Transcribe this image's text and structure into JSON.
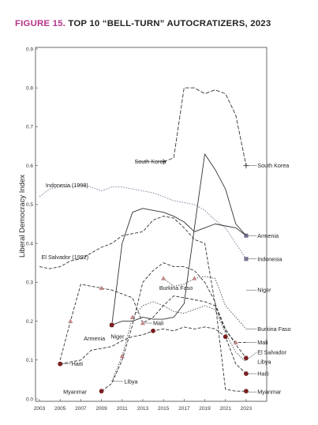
{
  "figure_number": "FIGURE 15.",
  "figure_title": "TOP 10 “BELL-TURN” AUTOCRATIZERS, 2023",
  "chart_data": {
    "type": "line",
    "title": "FIGURE 15. TOP 10 “BELL-TURN” AUTOCRATIZERS, 2023",
    "xlabel": "",
    "ylabel": "Liberal Democracy Index",
    "xlim": [
      2003,
      2024
    ],
    "ylim": [
      0,
      0.9
    ],
    "x_ticks": [
      "2003",
      "2005",
      "2007",
      "2009",
      "2011",
      "2013",
      "2015",
      "2017",
      "2019",
      "2021",
      "2023"
    ],
    "y_ticks": [
      "0.0",
      "0.1",
      "0.2",
      "0.3",
      "0.4",
      "0.5",
      "0.6",
      "0.7",
      "0.8",
      "0.9"
    ],
    "grid": false,
    "legend": "none",
    "series": [
      {
        "name": "South Korea",
        "color": "#333333",
        "dash": "5,2",
        "marker": "plus",
        "label": "South Korea",
        "start_label": "South Korea",
        "marker_at": [
          2015,
          2023
        ],
        "points": [
          [
            2015,
            0.61
          ],
          [
            2016,
            0.62
          ],
          [
            2017,
            0.8
          ],
          [
            2018,
            0.8
          ],
          [
            2019,
            0.785
          ],
          [
            2020,
            0.795
          ],
          [
            2021,
            0.785
          ],
          [
            2022,
            0.73
          ],
          [
            2023,
            0.6
          ]
        ]
      },
      {
        "name": "Indonesia",
        "color": "#7a7a9a",
        "dash": "1.6,1.6",
        "marker": "square",
        "label": "Indonesia",
        "start_label": "Indonesia (1998)",
        "marker_at": [
          2023
        ],
        "points": [
          [
            2003,
            0.52
          ],
          [
            2004,
            0.54
          ],
          [
            2005,
            0.545
          ],
          [
            2006,
            0.545
          ],
          [
            2007,
            0.55
          ],
          [
            2008,
            0.545
          ],
          [
            2009,
            0.535
          ],
          [
            2010,
            0.545
          ],
          [
            2011,
            0.545
          ],
          [
            2012,
            0.54
          ],
          [
            2013,
            0.535
          ],
          [
            2014,
            0.53
          ],
          [
            2015,
            0.52
          ],
          [
            2016,
            0.51
          ],
          [
            2017,
            0.505
          ],
          [
            2018,
            0.5
          ],
          [
            2019,
            0.485
          ],
          [
            2020,
            0.46
          ],
          [
            2021,
            0.44
          ],
          [
            2022,
            0.4
          ],
          [
            2023,
            0.36
          ]
        ]
      },
      {
        "name": "Armenia",
        "color": "#333333",
        "dash": "",
        "marker": "square",
        "label": "Armenia",
        "start_label": "Armenia",
        "marker_at": [
          2010,
          2023
        ],
        "points": [
          [
            2010,
            0.19
          ],
          [
            2011,
            0.4
          ],
          [
            2012,
            0.48
          ],
          [
            2013,
            0.49
          ],
          [
            2014,
            0.485
          ],
          [
            2015,
            0.48
          ],
          [
            2016,
            0.47
          ],
          [
            2017,
            0.455
          ],
          [
            2018,
            0.43
          ],
          [
            2019,
            0.44
          ],
          [
            2020,
            0.45
          ],
          [
            2021,
            0.445
          ],
          [
            2022,
            0.44
          ],
          [
            2023,
            0.42
          ]
        ]
      },
      {
        "name": "El Salvador",
        "color": "#333333",
        "dash": "4,2",
        "marker": "circle",
        "label": "El Salvador",
        "start_label": "El Salvador (1992)",
        "marker_at": [
          2023
        ],
        "points": [
          [
            2003,
            0.34
          ],
          [
            2004,
            0.335
          ],
          [
            2005,
            0.34
          ],
          [
            2006,
            0.355
          ],
          [
            2007,
            0.36
          ],
          [
            2008,
            0.375
          ],
          [
            2009,
            0.39
          ],
          [
            2010,
            0.4
          ],
          [
            2011,
            0.42
          ],
          [
            2012,
            0.425
          ],
          [
            2013,
            0.43
          ],
          [
            2014,
            0.46
          ],
          [
            2015,
            0.47
          ],
          [
            2016,
            0.465
          ],
          [
            2017,
            0.44
          ],
          [
            2018,
            0.41
          ],
          [
            2019,
            0.4
          ],
          [
            2020,
            0.245
          ],
          [
            2021,
            0.18
          ],
          [
            2022,
            0.14
          ],
          [
            2023,
            0.105
          ]
        ]
      },
      {
        "name": "Niger",
        "color": "#333333",
        "dash": "",
        "marker": "circle",
        "label": "Niger",
        "start_label": "Niger",
        "marker_at": [
          2010
        ],
        "points": [
          [
            2010,
            0.19
          ],
          [
            2011,
            0.2
          ],
          [
            2012,
            0.2
          ],
          [
            2013,
            0.21
          ],
          [
            2014,
            0.205
          ],
          [
            2015,
            0.205
          ],
          [
            2016,
            0.21
          ],
          [
            2017,
            0.245
          ],
          [
            2018,
            0.44
          ],
          [
            2019,
            0.63
          ],
          [
            2020,
            0.59
          ],
          [
            2021,
            0.54
          ],
          [
            2022,
            0.45
          ],
          [
            2023,
            0.42
          ]
        ]
      },
      {
        "name": "Burkina Faso",
        "color": "#555555",
        "dash": "1.6,1.6",
        "marker": "triangle",
        "label": "Burkina Faso",
        "start_label": "Burkina Faso",
        "marker_at": [
          2015,
          2018
        ],
        "points": [
          [
            2015,
            0.31
          ],
          [
            2016,
            0.29
          ],
          [
            2017,
            0.295
          ],
          [
            2018,
            0.31
          ],
          [
            2019,
            0.315
          ],
          [
            2020,
            0.31
          ],
          [
            2021,
            0.24
          ],
          [
            2022,
            0.21
          ],
          [
            2023,
            0.18
          ]
        ]
      },
      {
        "name": "Mali",
        "color": "#333333",
        "dash": "4,2",
        "marker": "triangle",
        "label": "Mali",
        "start_label": "Mali",
        "marker_at": [
          2006,
          2009,
          2013,
          2022
        ],
        "points": [
          [
            2005,
            0.1
          ],
          [
            2006,
            0.2
          ],
          [
            2007,
            0.295
          ],
          [
            2008,
            0.29
          ],
          [
            2009,
            0.285
          ],
          [
            2010,
            0.28
          ],
          [
            2011,
            0.27
          ],
          [
            2012,
            0.26
          ],
          [
            2013,
            0.195
          ],
          [
            2014,
            0.21
          ],
          [
            2015,
            0.24
          ],
          [
            2016,
            0.265
          ],
          [
            2017,
            0.26
          ],
          [
            2018,
            0.255
          ],
          [
            2019,
            0.25
          ],
          [
            2020,
            0.24
          ],
          [
            2021,
            0.175
          ],
          [
            2022,
            0.145
          ],
          [
            2023,
            0.145
          ]
        ]
      },
      {
        "name": "Libya",
        "color": "#555555",
        "dash": "1.6,1.6",
        "marker": "triangle",
        "label": "Libya",
        "start_label": "Libya",
        "marker_at": [
          2011,
          2012
        ],
        "points": [
          [
            2010,
            0.045
          ],
          [
            2011,
            0.11
          ],
          [
            2012,
            0.21
          ],
          [
            2013,
            0.24
          ],
          [
            2014,
            0.25
          ],
          [
            2015,
            0.24
          ],
          [
            2016,
            0.225
          ],
          [
            2017,
            0.22
          ],
          [
            2018,
            0.23
          ],
          [
            2019,
            0.24
          ],
          [
            2020,
            0.23
          ],
          [
            2021,
            0.17
          ],
          [
            2022,
            0.12
          ],
          [
            2023,
            0.095
          ]
        ]
      },
      {
        "name": "Haiti",
        "color": "#333333",
        "dash": "4,2",
        "marker": "circle",
        "label": "Haiti",
        "start_label": "Haiti",
        "marker_at": [
          2005,
          2014,
          2021,
          2023
        ],
        "points": [
          [
            2005,
            0.09
          ],
          [
            2006,
            0.095
          ],
          [
            2007,
            0.1
          ],
          [
            2008,
            0.125
          ],
          [
            2009,
            0.13
          ],
          [
            2010,
            0.135
          ],
          [
            2011,
            0.15
          ],
          [
            2012,
            0.16
          ],
          [
            2013,
            0.165
          ],
          [
            2014,
            0.175
          ],
          [
            2015,
            0.18
          ],
          [
            2016,
            0.175
          ],
          [
            2017,
            0.185
          ],
          [
            2018,
            0.18
          ],
          [
            2019,
            0.185
          ],
          [
            2020,
            0.18
          ],
          [
            2021,
            0.16
          ],
          [
            2022,
            0.09
          ],
          [
            2023,
            0.065
          ]
        ]
      },
      {
        "name": "Myanmar",
        "color": "#333333",
        "dash": "4,2",
        "marker": "circle",
        "label": "Myanmar",
        "start_label": "Myanmar",
        "marker_at": [
          2009,
          2023
        ],
        "points": [
          [
            2009,
            0.02
          ],
          [
            2010,
            0.04
          ],
          [
            2011,
            0.1
          ],
          [
            2012,
            0.19
          ],
          [
            2013,
            0.3
          ],
          [
            2014,
            0.33
          ],
          [
            2015,
            0.35
          ],
          [
            2016,
            0.34
          ],
          [
            2017,
            0.34
          ],
          [
            2018,
            0.33
          ],
          [
            2019,
            0.3
          ],
          [
            2020,
            0.25
          ],
          [
            2021,
            0.025
          ],
          [
            2022,
            0.02
          ],
          [
            2023,
            0.02
          ]
        ]
      }
    ],
    "annotations": [
      "South Korea",
      "South Korea",
      "Indonesia (1998)",
      "Armenia",
      "Indonesia",
      "El Salvador (1992)",
      "Niger",
      "Burkina Faso",
      "Burkina Faso",
      "Armenia",
      "Niger",
      "Mali",
      "Mali",
      "El Salvador",
      "Libya",
      "Haiti",
      "Haiti",
      "Libya",
      "Myanmar",
      "Myanmar"
    ]
  },
  "colors": {
    "title_accent": "#b5338a",
    "marker_square": "#7a7a9a",
    "marker_triangle": "#c48a8a",
    "marker_circle": "#7a1f1f",
    "marker_plus": "#333333"
  }
}
